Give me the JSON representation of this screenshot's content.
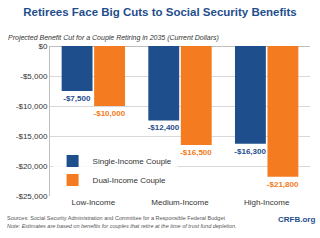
{
  "chart_data": {
    "type": "bar",
    "title": "Retirees Face Big Cuts to Social Security Benefits",
    "subtitle": "Projected Benefit Cut for a Couple Retiring in 2035 (Current Dollars)",
    "categories": [
      "Low-Income",
      "Medium-Income",
      "High-Income"
    ],
    "series": [
      {
        "name": "Single-Income Couple",
        "color": "#1f4e8c",
        "values": [
          -7500,
          -12400,
          -16300
        ],
        "value_labels": [
          "-$7,500",
          "-$12,400",
          "-$16,300"
        ]
      },
      {
        "name": "Dual-Income Couple",
        "color": "#f47b20",
        "values": [
          -10000,
          -16500,
          -21800
        ],
        "value_labels": [
          "-$10,000",
          "-$16,500",
          "-$21,800"
        ]
      }
    ],
    "ylim": [
      -25000,
      0
    ],
    "yticks": [
      {
        "value": 0,
        "label": "$0"
      },
      {
        "value": -5000,
        "label": "-$5,000"
      },
      {
        "value": -10000,
        "label": "-$10,000"
      },
      {
        "value": -15000,
        "label": "-$15,000"
      },
      {
        "value": -20000,
        "label": "-$20,000"
      },
      {
        "value": -25000,
        "label": "-$25,000"
      }
    ],
    "grid": true,
    "legend": "bottom left",
    "data_labels": true,
    "annotations": [
      "Sources: Social Security Administration and Committee for a Responsible Federal Budget",
      "Note: Estimates are based on benefits for couples that retire at the time of trust fund depletion.",
      "CRFB.org"
    ]
  }
}
